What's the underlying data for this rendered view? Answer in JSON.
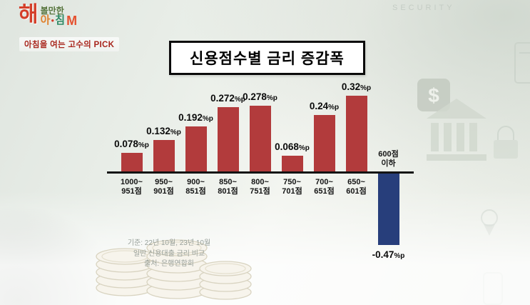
{
  "branding": {
    "logo": {
      "hae": "해",
      "top": "볼만한",
      "a": "아",
      "chim": "침",
      "m_mark": "M"
    },
    "tagline": "아침을 여는 고수의 PICK"
  },
  "background": {
    "security_label": "SECURITY"
  },
  "chart_data": {
    "type": "bar",
    "title": "신용점수별 금리 증감폭",
    "unit": "%p",
    "categories": [
      "1000~951점",
      "950~901점",
      "900~851점",
      "850~801점",
      "800~751점",
      "750~701점",
      "700~651점",
      "650~601점",
      "600점 이하"
    ],
    "category_lines": [
      [
        "1000~",
        "951점"
      ],
      [
        "950~",
        "901점"
      ],
      [
        "900~",
        "851점"
      ],
      [
        "850~",
        "801점"
      ],
      [
        "800~",
        "751점"
      ],
      [
        "750~",
        "701점"
      ],
      [
        "700~",
        "651점"
      ],
      [
        "650~",
        "601점"
      ],
      [
        "600점",
        "이하"
      ]
    ],
    "values": [
      0.078,
      0.132,
      0.192,
      0.272,
      0.278,
      0.068,
      0.24,
      0.32,
      -0.47
    ],
    "value_labels": [
      "0.078%p",
      "0.132%p",
      "0.192%p",
      "0.272%p",
      "0.278%p",
      "0.068%p",
      "0.24%p",
      "0.32%p",
      "-0.47%p"
    ],
    "xlabel": "",
    "ylabel": "",
    "ylim": [
      -0.5,
      0.35
    ],
    "colors": {
      "positive_bar": "#b23b3c",
      "negative_bar": "#273e7b",
      "axis": "#141414"
    },
    "legend": "none",
    "footnotes": [
      "기준: 22년 10월, 23년 10월",
      "일반 신용대출 금리 비교",
      "출처: 은행연합회"
    ]
  }
}
